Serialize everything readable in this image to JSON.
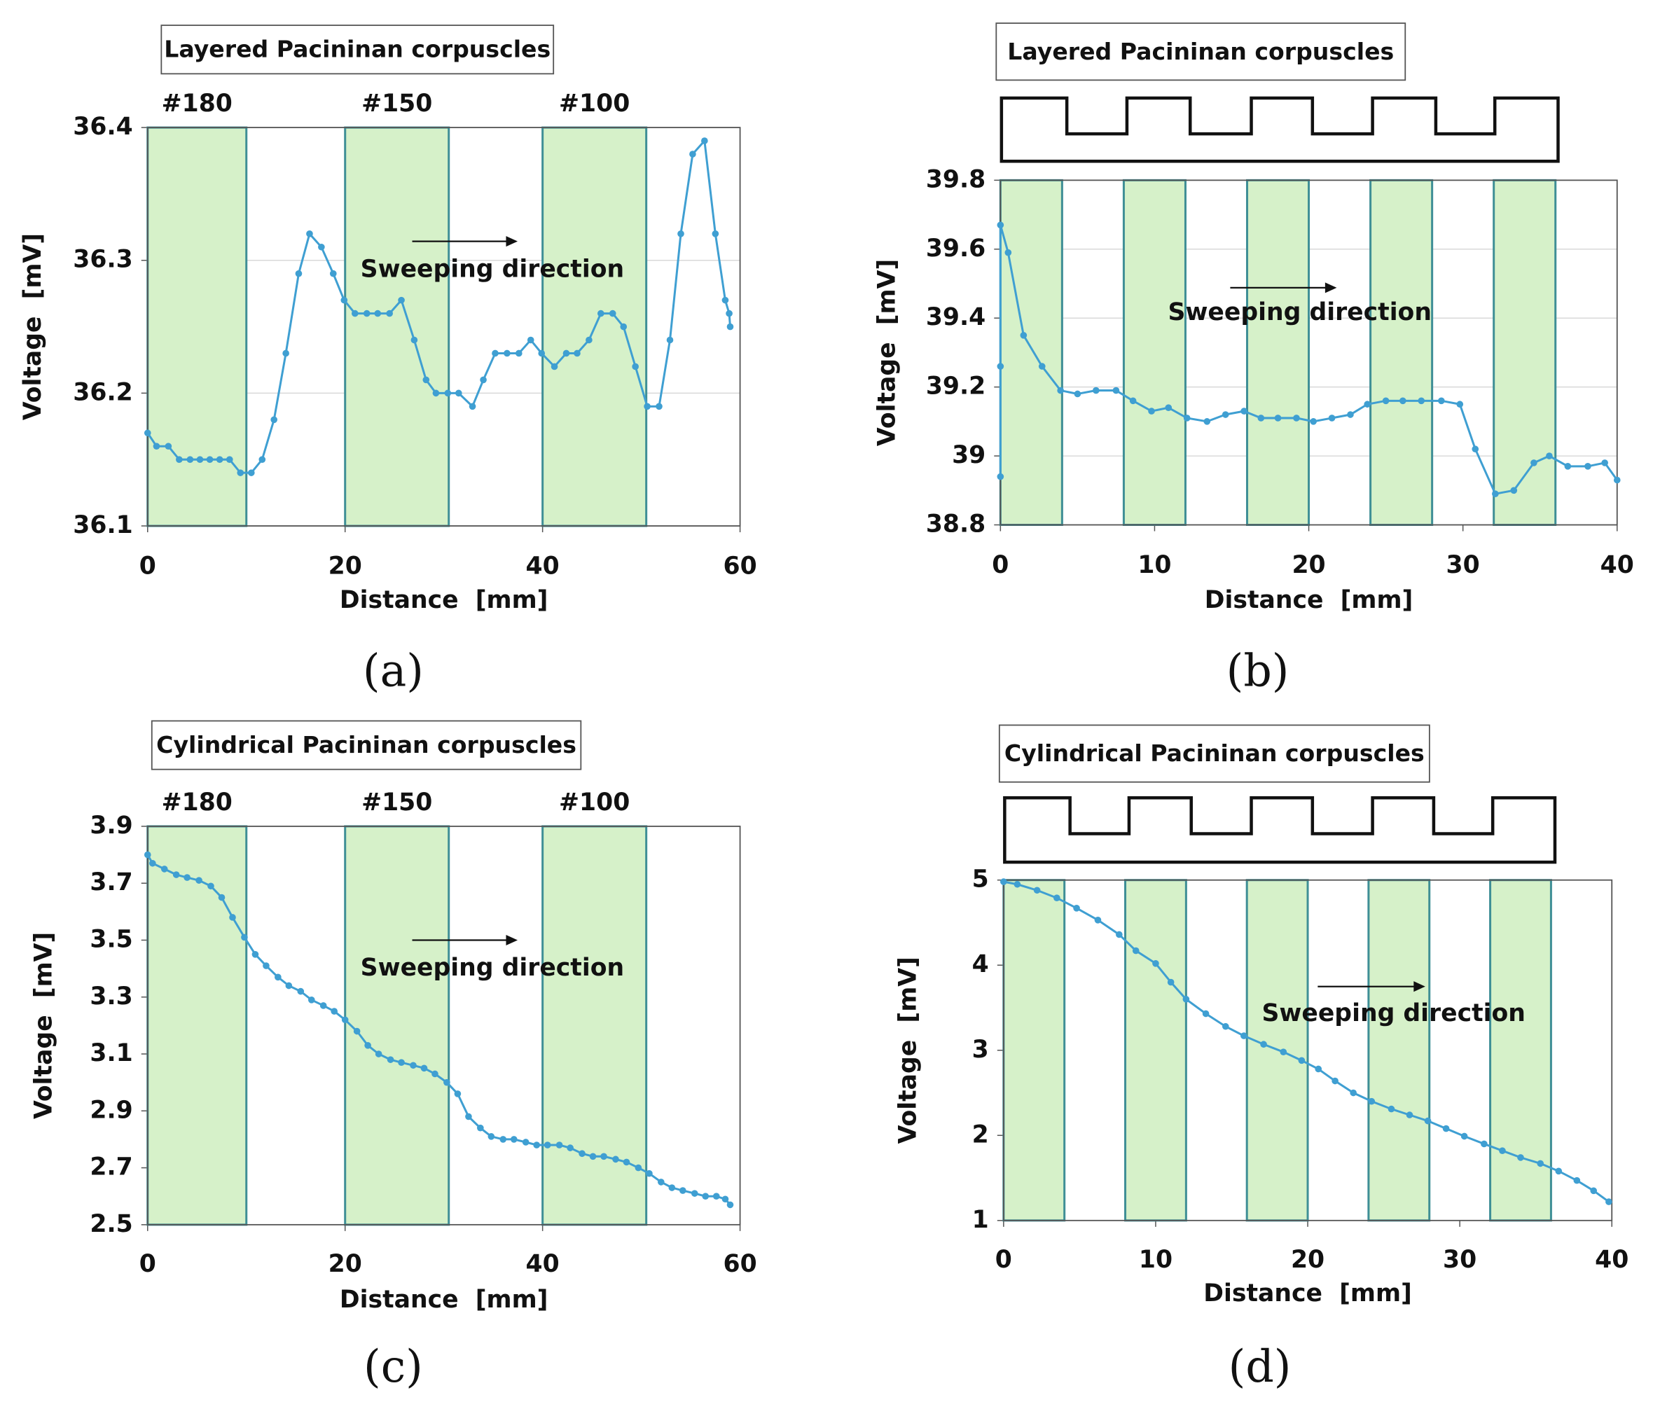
{
  "chart_data": [
    {
      "type": "line",
      "title": "Layered Pacininan corpuscles",
      "panel": "(a)",
      "x_label": "Distance  [mm]",
      "y_label": "Voltage  [mV]",
      "annotation": "Sweeping direction",
      "region_labels": [
        "#180",
        "#150",
        "#100"
      ],
      "regions": [
        [
          0,
          10
        ],
        [
          20,
          30.5
        ],
        [
          40,
          50.5
        ]
      ],
      "xlim": [
        0,
        60
      ],
      "xticks": [
        0,
        20,
        40,
        60
      ],
      "ylim": [
        36.1,
        36.4
      ],
      "yticks": [
        36.1,
        36.2,
        36.3,
        36.4
      ],
      "grid": true,
      "color": "#3f9fd2",
      "region_color": "#d6f1c9",
      "x": [
        0,
        0.9,
        2.1,
        3.2,
        4.3,
        5.3,
        6.3,
        7.3,
        8.3,
        9.4,
        10.5,
        11.6,
        12.8,
        14,
        15.3,
        16.4,
        17.6,
        18.8,
        19.9,
        21,
        22.2,
        23.3,
        24.5,
        25.7,
        27,
        28.2,
        29.2,
        30.4,
        31.5,
        32.9,
        34,
        35.2,
        36.4,
        37.6,
        38.8,
        39.9,
        41.2,
        42.4,
        43.5,
        44.7,
        45.9,
        47.1,
        48.2,
        49.4,
        50.6,
        51.8,
        52.9,
        54,
        55.2,
        56.4,
        57.5,
        58.5,
        58.9,
        59
      ],
      "values": [
        36.17,
        36.16,
        36.16,
        36.15,
        36.15,
        36.15,
        36.15,
        36.15,
        36.15,
        36.14,
        36.14,
        36.15,
        36.18,
        36.23,
        36.29,
        36.32,
        36.31,
        36.29,
        36.27,
        36.26,
        36.26,
        36.26,
        36.26,
        36.27,
        36.24,
        36.21,
        36.2,
        36.2,
        36.2,
        36.19,
        36.21,
        36.23,
        36.23,
        36.23,
        36.24,
        36.23,
        36.22,
        36.23,
        36.23,
        36.24,
        36.26,
        36.26,
        36.25,
        36.22,
        36.19,
        36.19,
        36.24,
        36.32,
        36.38,
        36.39,
        36.32,
        36.27,
        36.26,
        36.25
      ]
    },
    {
      "type": "line",
      "title": "Layered Pacininan corpuscles",
      "panel": "(b)",
      "x_label": "Distance  [mm]",
      "y_label": "Voltage  [mV]",
      "annotation": "Sweeping direction",
      "regions": [
        [
          0,
          4
        ],
        [
          8,
          12
        ],
        [
          16,
          20
        ],
        [
          24,
          28
        ],
        [
          32,
          36
        ]
      ],
      "xlim": [
        0,
        40
      ],
      "xticks": [
        0,
        10,
        20,
        30,
        40
      ],
      "ylim": [
        38.8,
        39.8
      ],
      "yticks": [
        38.8,
        39,
        39.2,
        39.4,
        39.6,
        39.8
      ],
      "grid": true,
      "color": "#3f9fd2",
      "region_color": "#d6f1c9",
      "x": [
        0,
        0,
        0,
        0.5,
        1.5,
        2.7,
        3.9,
        5,
        6.2,
        7.5,
        8.6,
        9.8,
        10.9,
        12.1,
        13.4,
        14.6,
        15.8,
        16.9,
        18,
        19.2,
        20.3,
        21.5,
        22.7,
        23.8,
        25,
        26.1,
        27.3,
        28.6,
        29.8,
        30.8,
        32.1,
        33.3,
        34.6,
        35.6,
        36.8,
        38.1,
        39.2,
        40
      ],
      "values": [
        38.94,
        39.26,
        39.67,
        39.59,
        39.35,
        39.26,
        39.19,
        39.18,
        39.19,
        39.19,
        39.16,
        39.13,
        39.14,
        39.11,
        39.1,
        39.12,
        39.13,
        39.11,
        39.11,
        39.11,
        39.1,
        39.11,
        39.12,
        39.15,
        39.16,
        39.16,
        39.16,
        39.16,
        39.15,
        39.02,
        38.89,
        38.9,
        38.98,
        39,
        38.97,
        38.97,
        38.98,
        38.93
      ]
    },
    {
      "type": "line",
      "title": "Cylindrical Pacininan corpuscles",
      "panel": "(c)",
      "x_label": "Distance  [mm]",
      "y_label": "Voltage  [mV]",
      "annotation": "Sweeping direction",
      "region_labels": [
        "#180",
        "#150",
        "#100"
      ],
      "regions": [
        [
          0,
          10
        ],
        [
          20,
          30.5
        ],
        [
          40,
          50.5
        ]
      ],
      "xlim": [
        0,
        60
      ],
      "xticks": [
        0,
        20,
        40,
        60
      ],
      "ylim": [
        2.5,
        3.9
      ],
      "yticks": [
        2.5,
        2.7,
        2.9,
        3.1,
        3.3,
        3.5,
        3.7,
        3.9
      ],
      "grid": false,
      "color": "#3f9fd2",
      "region_color": "#d6f1c9",
      "x": [
        0,
        0.5,
        1.7,
        2.9,
        4,
        5.2,
        6.4,
        7.5,
        8.6,
        9.8,
        10.9,
        12,
        13.2,
        14.3,
        15.5,
        16.6,
        17.8,
        18.9,
        20,
        21.2,
        22.3,
        23.4,
        24.6,
        25.7,
        26.9,
        28,
        29.1,
        30.3,
        31.4,
        32.5,
        33.7,
        34.8,
        36,
        37.1,
        38.3,
        39.4,
        40.5,
        41.7,
        42.8,
        44,
        45.1,
        46.2,
        47.4,
        48.5,
        49.7,
        50.8,
        52,
        53.1,
        54.2,
        55.4,
        56.5,
        57.6,
        58.5,
        59
      ],
      "values": [
        3.8,
        3.77,
        3.75,
        3.73,
        3.72,
        3.71,
        3.69,
        3.65,
        3.58,
        3.51,
        3.45,
        3.41,
        3.37,
        3.34,
        3.32,
        3.29,
        3.27,
        3.25,
        3.22,
        3.18,
        3.13,
        3.1,
        3.08,
        3.07,
        3.06,
        3.05,
        3.03,
        3,
        2.96,
        2.88,
        2.84,
        2.81,
        2.8,
        2.8,
        2.79,
        2.78,
        2.78,
        2.78,
        2.77,
        2.75,
        2.74,
        2.74,
        2.73,
        2.72,
        2.7,
        2.68,
        2.65,
        2.63,
        2.62,
        2.61,
        2.6,
        2.6,
        2.59,
        2.57
      ]
    },
    {
      "type": "line",
      "title": "Cylindrical Pacininan corpuscles",
      "panel": "(d)",
      "x_label": "Distance  [mm]",
      "y_label": "Voltage  [mV]",
      "annotation": "Sweeping direction",
      "regions": [
        [
          0,
          4
        ],
        [
          8,
          12
        ],
        [
          16,
          20
        ],
        [
          24,
          28
        ],
        [
          32,
          36
        ]
      ],
      "xlim": [
        0,
        40
      ],
      "xticks": [
        0,
        10,
        20,
        30,
        40
      ],
      "ylim": [
        1,
        5
      ],
      "yticks": [
        1,
        2,
        3,
        4,
        5
      ],
      "grid": false,
      "color": "#3f9fd2",
      "region_color": "#d6f1c9",
      "x": [
        0,
        0.9,
        2.2,
        3.5,
        4.8,
        6.2,
        7.6,
        8.7,
        10,
        11,
        12,
        13.3,
        14.6,
        15.8,
        17.1,
        18.4,
        19.6,
        20.7,
        21.8,
        23,
        24.2,
        25.5,
        26.7,
        27.9,
        29.1,
        30.3,
        31.6,
        32.8,
        34,
        35.3,
        36.5,
        37.7,
        38.8,
        39.8
      ],
      "values": [
        4.98,
        4.95,
        4.88,
        4.79,
        4.67,
        4.53,
        4.36,
        4.17,
        4.02,
        3.8,
        3.6,
        3.43,
        3.28,
        3.17,
        3.07,
        2.98,
        2.88,
        2.78,
        2.64,
        2.5,
        2.4,
        2.31,
        2.24,
        2.17,
        2.08,
        1.99,
        1.9,
        1.82,
        1.74,
        1.67,
        1.58,
        1.47,
        1.35,
        1.22
      ]
    }
  ]
}
